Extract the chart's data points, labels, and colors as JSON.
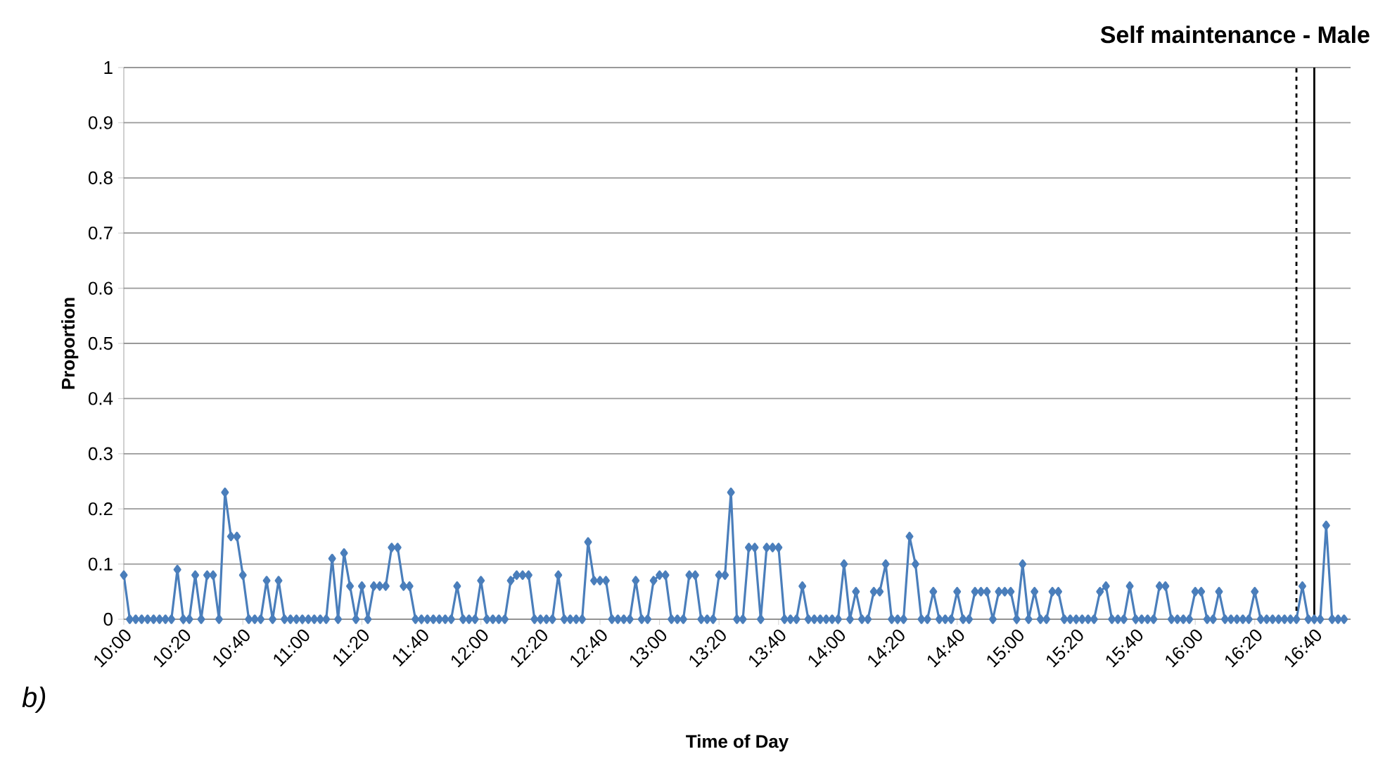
{
  "chart_data": {
    "type": "line",
    "title": "Self maintenance - Male",
    "xlabel": "Time of Day",
    "ylabel": "Proportion",
    "annotations": [
      "b)"
    ],
    "x": [
      10,
      10.0333,
      10.0667,
      10.1,
      10.1333,
      10.1667,
      10.2,
      10.2333,
      10.2667,
      10.3,
      10.3333,
      10.3667,
      10.4,
      10.4333,
      10.4667,
      10.5,
      10.5333,
      10.5667,
      10.6,
      10.6333,
      10.6667,
      10.7,
      10.7333,
      10.7667,
      10.8,
      10.8333,
      10.8667,
      10.9,
      10.9333,
      10.9667,
      11,
      11.0333,
      11.0667,
      11.1,
      11.1333,
      11.1667,
      11.2,
      11.2333,
      11.2667,
      11.3,
      11.3333,
      11.3667,
      11.4,
      11.4333,
      11.4667,
      11.5,
      11.5333,
      11.5667,
      11.6,
      11.6333,
      11.6667,
      11.7,
      11.7333,
      11.7667,
      11.8,
      11.8333,
      11.8667,
      11.9,
      11.9333,
      11.9667,
      12,
      12.0333,
      12.0667,
      12.1,
      12.1333,
      12.1667,
      12.2,
      12.2333,
      12.2667,
      12.3,
      12.3333,
      12.3667,
      12.4,
      12.4333,
      12.4667,
      12.5,
      12.5333,
      12.5667,
      12.6,
      12.6333,
      12.6667,
      12.7,
      12.7333,
      12.7667,
      12.8,
      12.8333,
      12.8667,
      12.9,
      12.9333,
      12.9667,
      13,
      13.0333,
      13.0667,
      13.1,
      13.1333,
      13.1667,
      13.2,
      13.2333,
      13.2667,
      13.3,
      13.3333,
      13.3667,
      13.4,
      13.4333,
      13.4667,
      13.5,
      13.5333,
      13.5667,
      13.6,
      13.6333,
      13.6667,
      13.7,
      13.7333,
      13.7667,
      13.8,
      13.8333,
      13.8667,
      13.9,
      13.9333,
      13.9667,
      14,
      14.0333,
      14.0667,
      14.1,
      14.1333,
      14.1667,
      14.2,
      14.2333,
      14.2667,
      14.3,
      14.3333,
      14.3667,
      14.4,
      14.4333,
      14.4667,
      14.5,
      14.5333,
      14.5667,
      14.6,
      14.6333,
      14.6667,
      14.7,
      14.7333,
      14.7667,
      14.8,
      14.8333,
      14.8667,
      14.9,
      14.9333,
      14.9667,
      15,
      15.0333,
      15.0667,
      15.1,
      15.1333,
      15.1667,
      15.2,
      15.2333,
      15.2667,
      15.3,
      15.3333,
      15.3667,
      15.4,
      15.4333,
      15.4667,
      15.5,
      15.5333,
      15.5667,
      15.6,
      15.6333,
      15.6667,
      15.7,
      15.7333,
      15.7667,
      15.8,
      15.8333,
      15.8667,
      15.9,
      15.9333,
      15.9667,
      16,
      16.0333,
      16.0667,
      16.1,
      16.1333,
      16.1667,
      16.2,
      16.2333,
      16.2667,
      16.3,
      16.3333,
      16.3667,
      16.4,
      16.4333,
      16.4667,
      16.5,
      16.5333,
      16.5667,
      16.6,
      16.6333,
      16.6667,
      16.7,
      16.7333,
      16.7667,
      16.8,
      16.8333
    ],
    "series": [
      {
        "color": "#4a7ebb",
        "values": [
          0.08,
          0,
          0,
          0,
          0,
          0,
          0,
          0,
          0,
          0.09,
          0,
          0,
          0.08,
          0,
          0.08,
          0.08,
          0,
          0.23,
          0.15,
          0.15,
          0.08,
          0,
          0,
          0,
          0.07,
          0,
          0.07,
          0,
          0,
          0,
          0,
          0,
          0,
          0,
          0,
          0.11,
          0,
          0.12,
          0.06,
          0,
          0.06,
          0,
          0.06,
          0.06,
          0.06,
          0.13,
          0.13,
          0.06,
          0.06,
          0,
          0,
          0,
          0,
          0,
          0,
          0,
          0.06,
          0,
          0,
          0,
          0.07,
          0,
          0,
          0,
          0,
          0.07,
          0.08,
          0.08,
          0.08,
          0,
          0,
          0,
          0,
          0.08,
          0,
          0,
          0,
          0,
          0.14,
          0.07,
          0.07,
          0.07,
          0,
          0,
          0,
          0,
          0.07,
          0,
          0,
          0.07,
          0.08,
          0.08,
          0,
          0,
          0,
          0.08,
          0.08,
          0,
          0,
          0,
          0.08,
          0.08,
          0.23,
          0,
          0,
          0.13,
          0.13,
          0,
          0.13,
          0.13,
          0.13,
          0,
          0,
          0,
          0.06,
          0,
          0,
          0,
          0,
          0,
          0,
          0.1,
          0,
          0.05,
          0,
          0,
          0.05,
          0.05,
          0.1,
          0,
          0,
          0,
          0.15,
          0.1,
          0,
          0,
          0.05,
          0,
          0,
          0,
          0.05,
          0,
          0,
          0.05,
          0.05,
          0.05,
          0,
          0.05,
          0.05,
          0.05,
          0,
          0.1,
          0,
          0.05,
          0,
          0,
          0.05,
          0.05,
          0,
          0,
          0,
          0,
          0,
          0,
          0.05,
          0.06,
          0,
          0,
          0,
          0.06,
          0,
          0,
          0,
          0,
          0.06,
          0.06,
          0,
          0,
          0,
          0,
          0.05,
          0.05,
          0,
          0,
          0.05,
          0,
          0,
          0,
          0,
          0,
          0.05,
          0,
          0,
          0,
          0,
          0,
          0,
          0,
          0.06,
          0,
          0,
          0,
          0.17,
          0,
          0,
          0
        ]
      }
    ],
    "xlim": [
      10,
      16.87
    ],
    "ylim": [
      0,
      1
    ],
    "xticks": [
      {
        "value": 10,
        "label": "10:00"
      },
      {
        "value": 10.3333,
        "label": "10:20"
      },
      {
        "value": 10.6667,
        "label": "10:40"
      },
      {
        "value": 11,
        "label": "11:00"
      },
      {
        "value": 11.3333,
        "label": "11:20"
      },
      {
        "value": 11.6667,
        "label": "11:40"
      },
      {
        "value": 12,
        "label": "12:00"
      },
      {
        "value": 12.3333,
        "label": "12:20"
      },
      {
        "value": 12.6667,
        "label": "12:40"
      },
      {
        "value": 13,
        "label": "13:00"
      },
      {
        "value": 13.3333,
        "label": "13:20"
      },
      {
        "value": 13.6667,
        "label": "13:40"
      },
      {
        "value": 14,
        "label": "14:00"
      },
      {
        "value": 14.3333,
        "label": "14:20"
      },
      {
        "value": 14.6667,
        "label": "14:40"
      },
      {
        "value": 15,
        "label": "15:00"
      },
      {
        "value": 15.3333,
        "label": "15:20"
      },
      {
        "value": 15.6667,
        "label": "15:40"
      },
      {
        "value": 16,
        "label": "16:00"
      },
      {
        "value": 16.3333,
        "label": "16:20"
      },
      {
        "value": 16.6667,
        "label": "16:40"
      }
    ],
    "yticks": [
      0,
      0.1,
      0.2,
      0.3,
      0.4,
      0.5,
      0.6,
      0.7,
      0.8,
      0.9,
      1
    ],
    "grid": "y",
    "marker": "diamond",
    "line_style": "solid",
    "ref_lines": [
      {
        "axis": "x",
        "value": 16.5667,
        "color": "#000000",
        "line_style": "dashed"
      },
      {
        "axis": "x",
        "value": 16.6667,
        "color": "#000000",
        "line_style": "solid"
      }
    ]
  }
}
